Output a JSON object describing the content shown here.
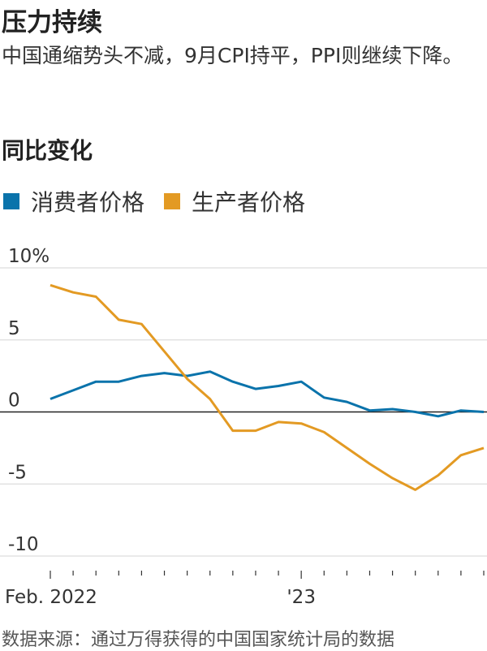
{
  "header": {
    "title": "压力持续",
    "subtitle": "中国通缩势头不减，9月CPI持平，PPI则继续下降。"
  },
  "footer": {
    "source": "数据来源：通过万得获得的中国国家统计局的数据"
  },
  "chart_data": {
    "type": "line",
    "title": "同比变化",
    "x": [
      "2022-02",
      "2022-03",
      "2022-04",
      "2022-05",
      "2022-06",
      "2022-07",
      "2022-08",
      "2022-09",
      "2022-10",
      "2022-11",
      "2022-12",
      "2023-01",
      "2023-02",
      "2023-03",
      "2023-04",
      "2023-05",
      "2023-06",
      "2023-07",
      "2023-08",
      "2023-09"
    ],
    "x_tick_labels": [
      {
        "at": "2022-02",
        "label": "Feb. 2022"
      },
      {
        "at": "2023-01",
        "label": "'23"
      }
    ],
    "y_ticks": [
      {
        "value": 10,
        "label": "10%"
      },
      {
        "value": 5,
        "label": "5"
      },
      {
        "value": 0,
        "label": "0"
      },
      {
        "value": -5,
        "label": "-5"
      },
      {
        "value": -10,
        "label": "-10"
      }
    ],
    "ylim": [
      -10,
      10
    ],
    "grid": true,
    "legend_position": "top-left",
    "series": [
      {
        "name": "消费者价格",
        "color": "#0a73ab",
        "values": [
          0.9,
          1.5,
          2.1,
          2.1,
          2.5,
          2.7,
          2.5,
          2.8,
          2.1,
          1.6,
          1.8,
          2.1,
          1.0,
          0.7,
          0.1,
          0.2,
          0.0,
          -0.3,
          0.1,
          0.0
        ]
      },
      {
        "name": "生产者价格",
        "color": "#e39a23",
        "values": [
          8.8,
          8.3,
          8.0,
          6.4,
          6.1,
          4.2,
          2.3,
          0.9,
          -1.3,
          -1.3,
          -0.7,
          -0.8,
          -1.4,
          -2.5,
          -3.6,
          -4.6,
          -5.4,
          -4.4,
          -3.0,
          -2.5
        ]
      }
    ]
  }
}
